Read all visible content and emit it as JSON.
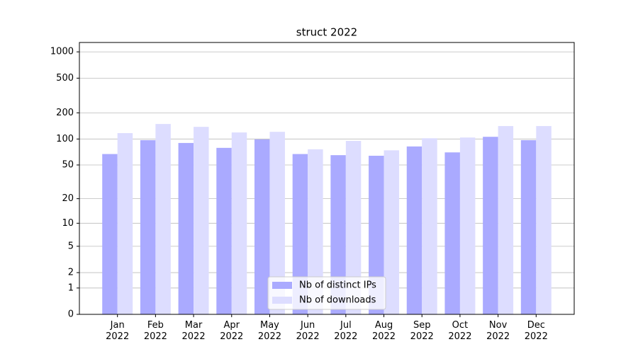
{
  "chart_data": {
    "type": "bar",
    "title": "struct 2022",
    "categories": [
      "Jan 2022",
      "Feb 2022",
      "Mar 2022",
      "Apr 2022",
      "May 2022",
      "Jun 2022",
      "Jul 2022",
      "Aug 2022",
      "Sep 2022",
      "Oct 2022",
      "Nov 2022",
      "Dec 2022"
    ],
    "series": [
      {
        "name": "Nb of distinct IPs",
        "color": "#aaaaff",
        "values": [
          67,
          97,
          90,
          79,
          99,
          67,
          65,
          64,
          82,
          70,
          106,
          97
        ]
      },
      {
        "name": "Nb of downloads",
        "color": "#ddddff",
        "values": [
          117,
          149,
          138,
          119,
          121,
          76,
          95,
          74,
          102,
          104,
          141,
          141
        ]
      }
    ],
    "yscale": "log1p",
    "ylim": [
      0,
      1280
    ],
    "yticks": [
      0,
      1,
      2,
      5,
      10,
      20,
      50,
      100,
      200,
      500,
      1000
    ],
    "grid": true,
    "legend": "lower center"
  }
}
